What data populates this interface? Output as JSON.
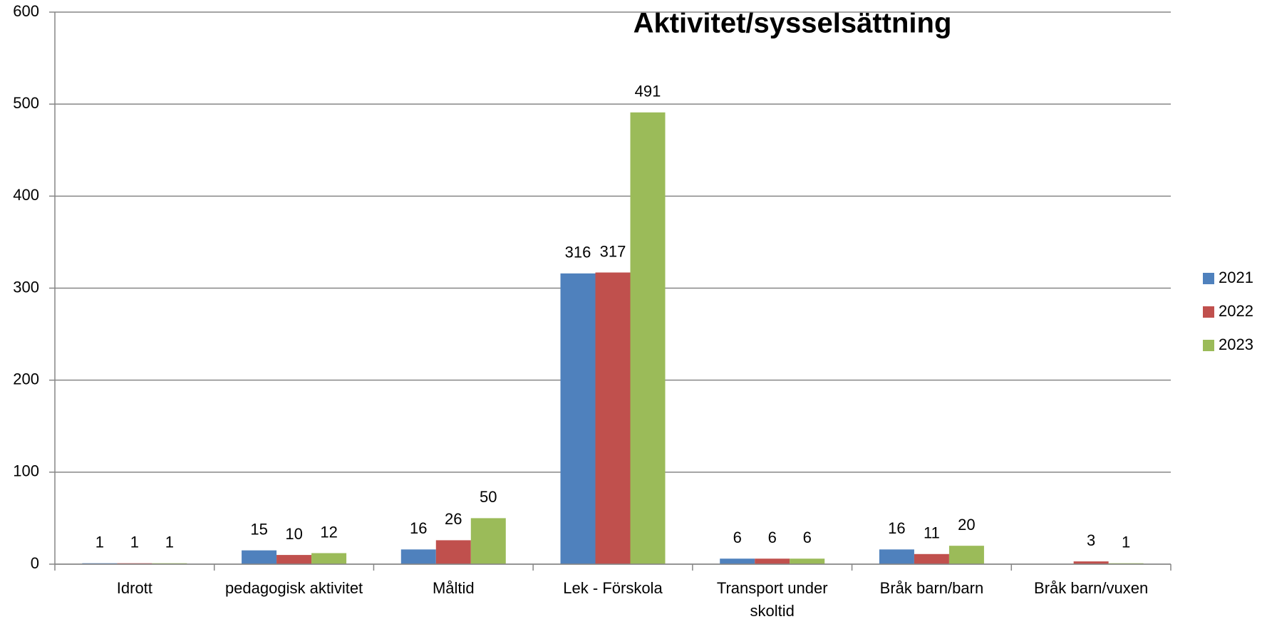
{
  "chart_data": {
    "type": "bar",
    "title": "Aktivitet/sysselsättning",
    "categories": [
      "Idrott",
      "pedagogisk aktivitet",
      "Måltid",
      "Lek - Förskola",
      "Transport under skoltid",
      "Bråk barn/barn",
      "Bråk barn/vuxen"
    ],
    "series": [
      {
        "name": "2021",
        "color": "#4f81bd",
        "values": [
          1,
          15,
          16,
          316,
          6,
          16,
          null
        ]
      },
      {
        "name": "2022",
        "color": "#c0504d",
        "values": [
          1,
          10,
          26,
          317,
          6,
          11,
          3
        ]
      },
      {
        "name": "2023",
        "color": "#9bbb59",
        "values": [
          1,
          12,
          50,
          491,
          6,
          20,
          1
        ]
      }
    ],
    "ylim": [
      0,
      600
    ],
    "yticks": [
      0,
      100,
      200,
      300,
      400,
      500,
      600
    ],
    "grid": true,
    "legend": "right"
  }
}
